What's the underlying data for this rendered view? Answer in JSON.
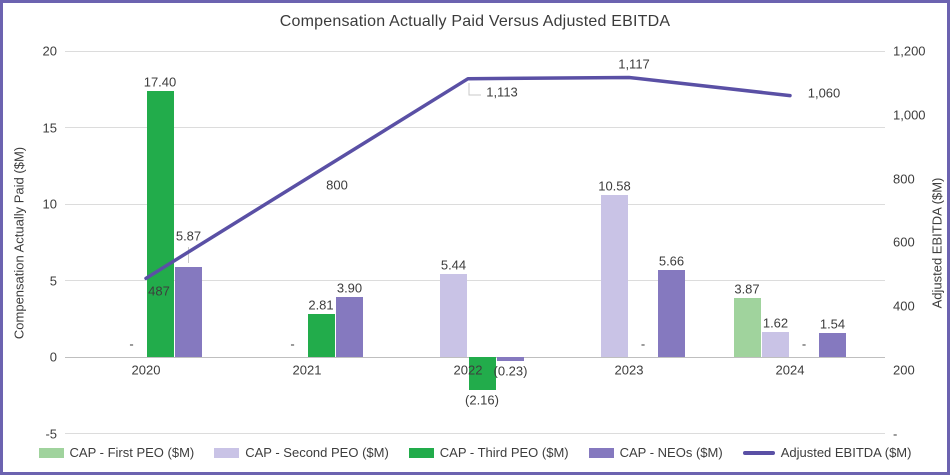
{
  "title": "Compensation Actually Paid Versus Adjusted EBITDA",
  "axes": {
    "left": {
      "title": "Compensation Actually Paid ($M)",
      "ticks": [
        "20",
        "15",
        "10",
        "5",
        "0",
        "-5"
      ]
    },
    "right": {
      "title": "Adjusted EBITDA ($M)",
      "ticks": [
        "1,200",
        "1,000",
        "800",
        "600",
        "400",
        "200",
        "-"
      ]
    }
  },
  "chart_data": {
    "type": "combo-bar-line",
    "categories": [
      "2020",
      "2021",
      "2022",
      "2023",
      "2024"
    ],
    "left_axis": {
      "label": "Compensation Actually Paid ($M)",
      "range": [
        -5,
        20
      ],
      "tick_step": 5
    },
    "right_axis": {
      "label": "Adjusted EBITDA ($M)",
      "range": [
        0,
        1200
      ],
      "tick_step": 200
    },
    "grid": true,
    "legend_position": "bottom",
    "series": [
      {
        "name": "CAP - First PEO ($M)",
        "type": "bar",
        "color": "#a0d39d",
        "values": [
          null,
          null,
          null,
          null,
          3.87
        ],
        "labels": [
          null,
          null,
          null,
          null,
          "3.87"
        ]
      },
      {
        "name": "CAP - Second PEO ($M)",
        "type": "bar",
        "color": "#c9c3e6",
        "values": [
          0,
          0,
          5.44,
          10.58,
          1.62
        ],
        "labels": [
          "-",
          "-",
          "5.44",
          "10.58",
          "1.62"
        ]
      },
      {
        "name": "CAP - Third PEO ($M)",
        "type": "bar",
        "color": "#22ac4b",
        "values": [
          17.4,
          2.81,
          -2.16,
          0,
          0
        ],
        "labels": [
          "17.40",
          "2.81",
          "(2.16)",
          "-",
          "-"
        ]
      },
      {
        "name": "CAP - NEOs ($M)",
        "type": "bar",
        "color": "#8579bf",
        "values": [
          5.87,
          3.9,
          -0.23,
          5.66,
          1.54
        ],
        "labels": [
          "5.87",
          "3.90",
          "(0.23)",
          "5.66",
          "1.54"
        ]
      },
      {
        "name": "Adjusted EBITDA ($M)",
        "type": "line",
        "color": "#5a50a5",
        "values": [
          487,
          800,
          1113,
          1117,
          1060
        ],
        "labels": [
          "487",
          "800",
          "1,113",
          "1,117",
          "1,060"
        ]
      }
    ]
  }
}
